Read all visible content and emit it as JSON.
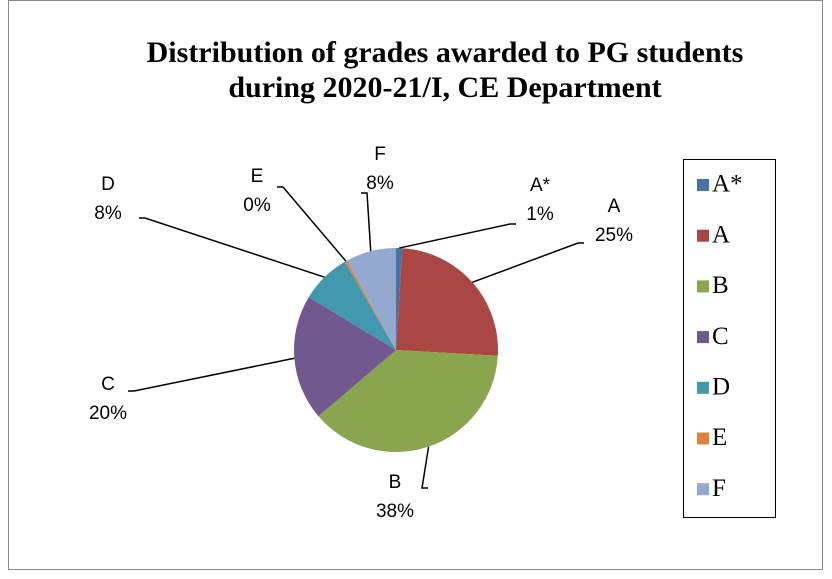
{
  "chart_data": {
    "type": "pie",
    "title": "Distribution of grades awarded to PG students during 2020-21/I, CE Department",
    "categories": [
      "A*",
      "A",
      "B",
      "C",
      "D",
      "E",
      "F"
    ],
    "values": [
      1,
      25,
      38,
      20,
      8,
      0.4,
      8
    ],
    "value_labels": [
      "1%",
      "25%",
      "38%",
      "20%",
      "8%",
      "0%",
      "8%"
    ],
    "colors": [
      "#4572a7",
      "#aa4643",
      "#89a54e",
      "#71588f",
      "#4198af",
      "#db843d",
      "#93a9cf"
    ],
    "legend": "right"
  }
}
